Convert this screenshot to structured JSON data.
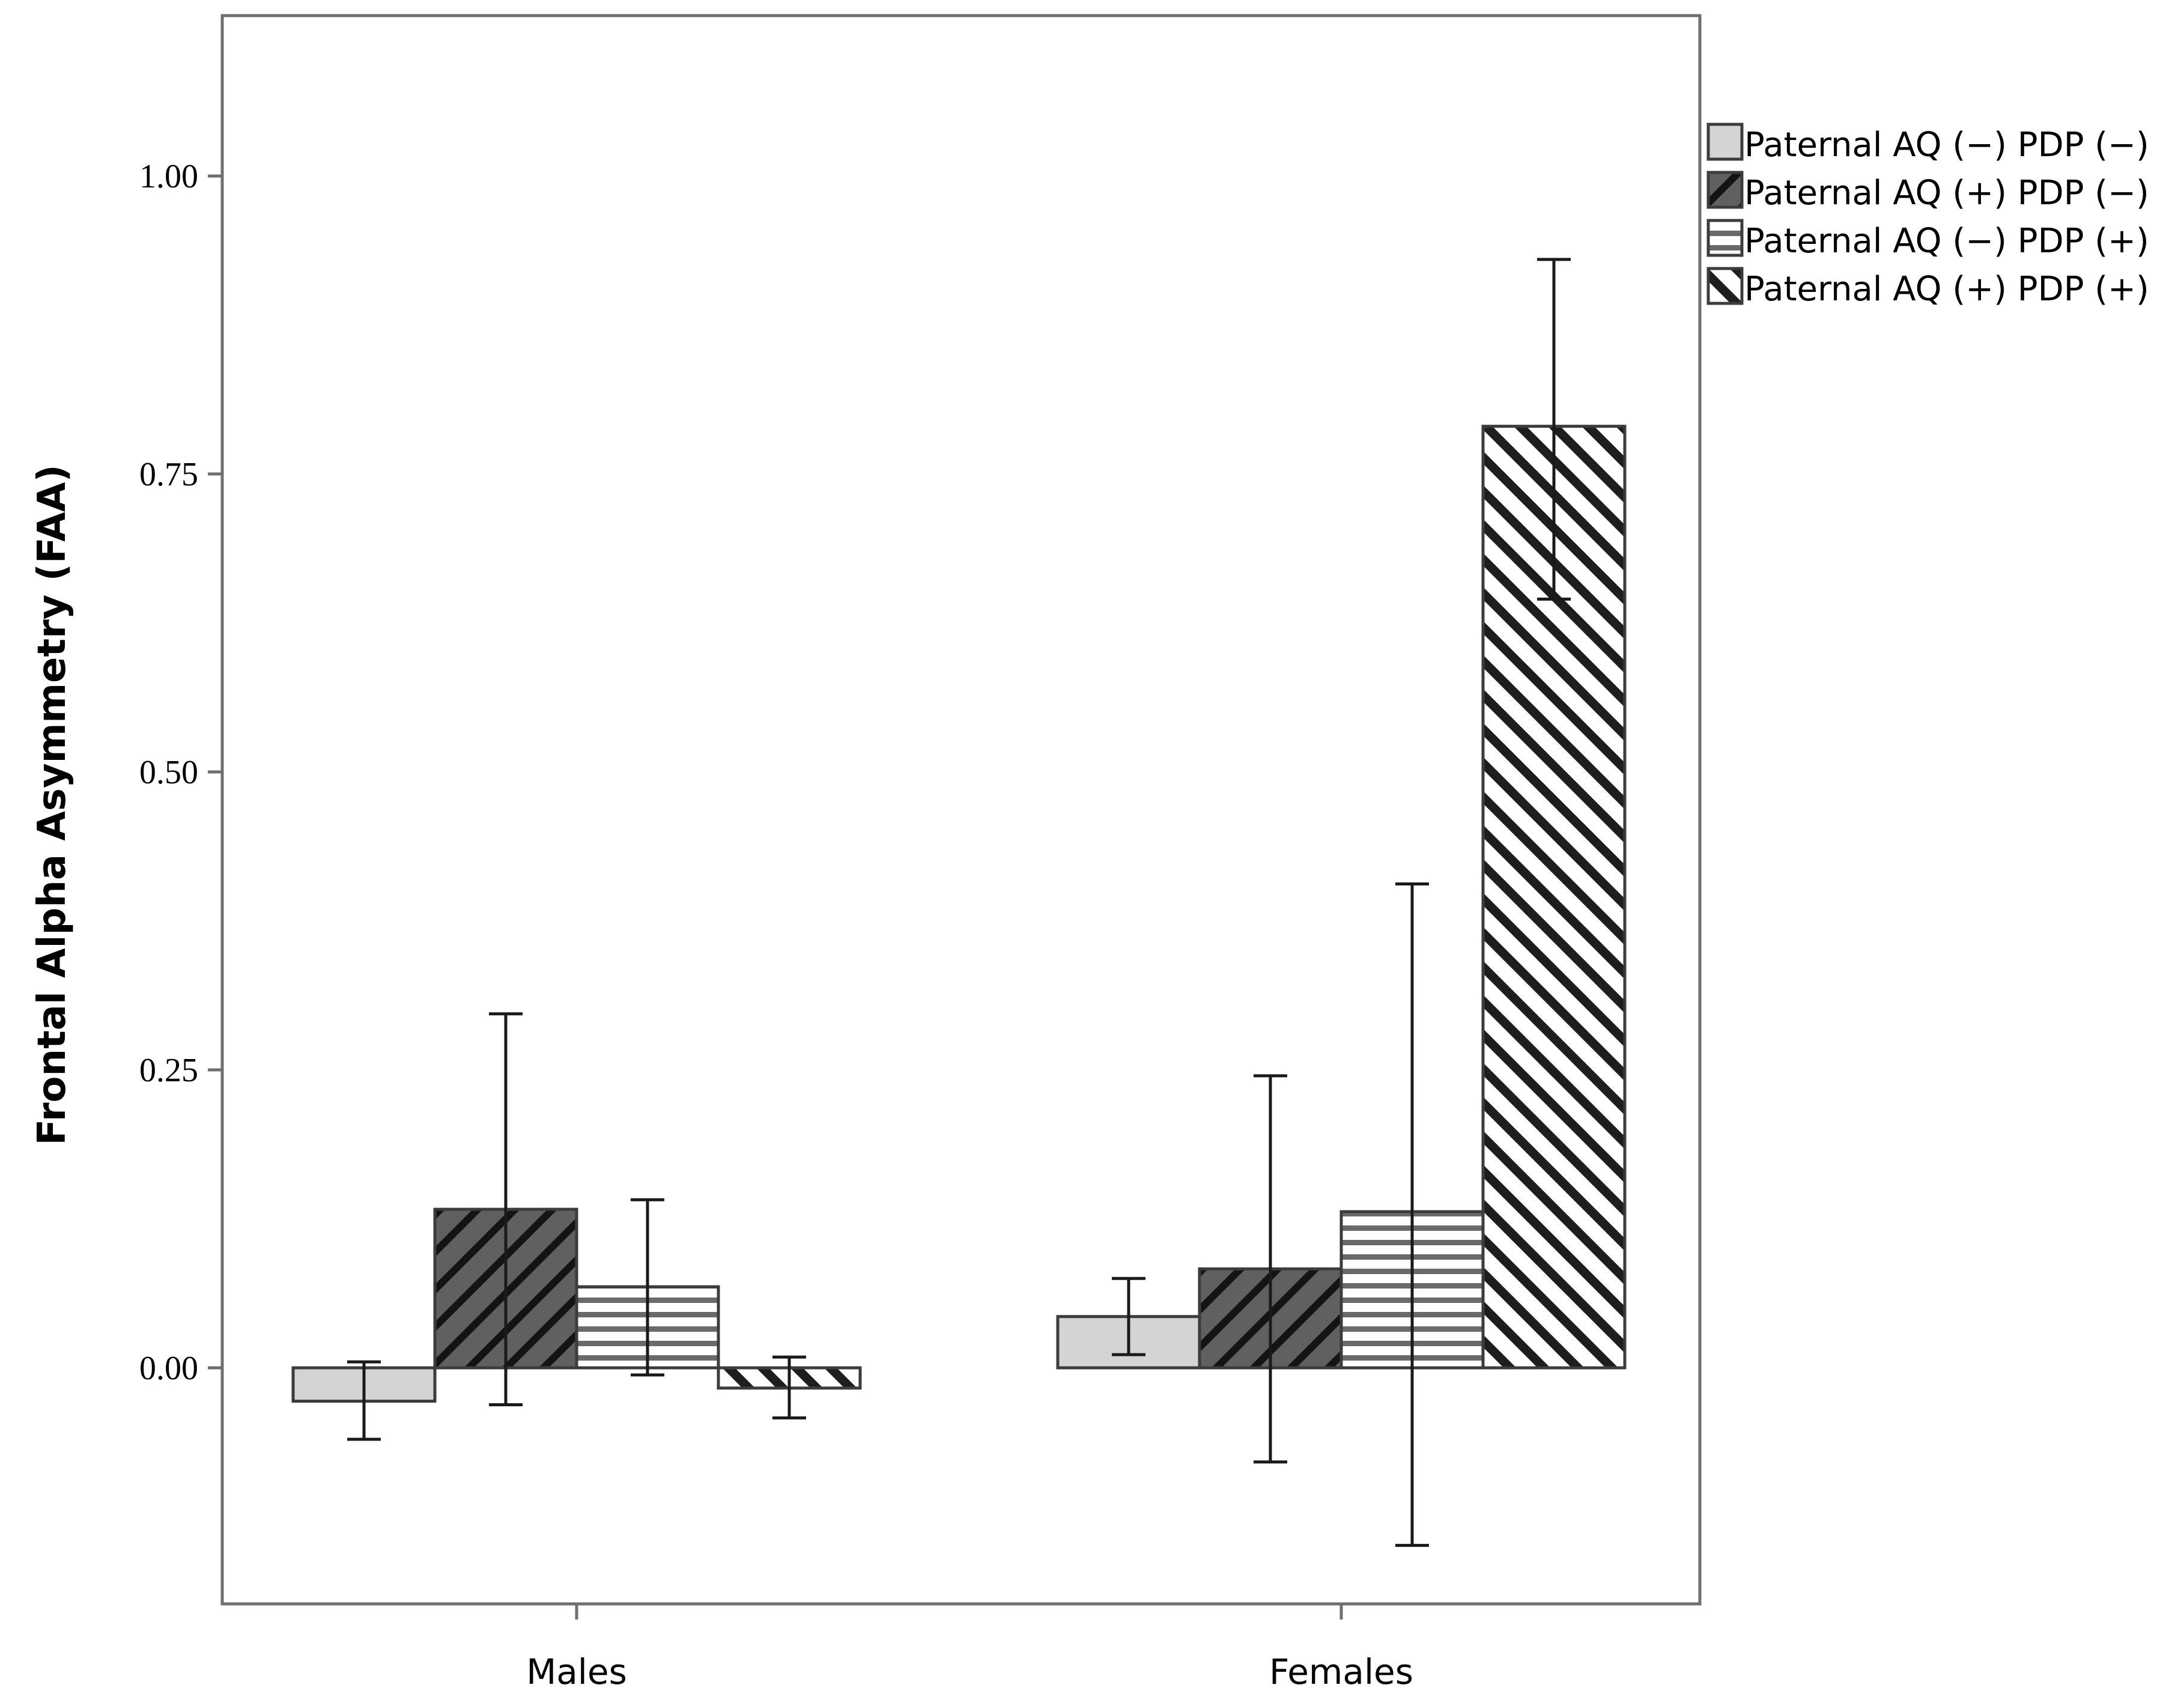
{
  "chart_data": {
    "type": "bar",
    "title": "",
    "xlabel": "",
    "ylabel": "Frontal Alpha Asymmetry (FAA)",
    "categories": [
      "Males",
      "Females"
    ],
    "ylim": [
      -0.2,
      1.13
    ],
    "yticks": [
      "1.00",
      "0.75",
      "0.50",
      "0.25",
      "0.00"
    ],
    "ytick_values": [
      1.0,
      0.75,
      0.5,
      0.25,
      0.0
    ],
    "legend_position": "right",
    "series": [
      {
        "name": "Paternal AQ (−) PDP (−)",
        "pattern": "solid-light",
        "fill": "#d4d4d4",
        "values": [
          -0.028,
          0.043
        ],
        "err_low": [
          -0.06,
          0.011
        ],
        "err_high": [
          0.005,
          0.075
        ]
      },
      {
        "name": "Paternal AQ (+) PDP (−)",
        "pattern": "backslash-dark",
        "fill": "#606060",
        "values": [
          0.133,
          0.083
        ],
        "err_low": [
          -0.031,
          -0.079
        ],
        "err_high": [
          0.297,
          0.245
        ]
      },
      {
        "name": "Paternal AQ (−) PDP (+)",
        "pattern": "horizontal",
        "fill": "#ffffff",
        "values": [
          0.068,
          0.131
        ],
        "err_low": [
          -0.006,
          -0.149
        ],
        "err_high": [
          0.141,
          0.406
        ]
      },
      {
        "name": "Paternal AQ (+) PDP (+)",
        "pattern": "slash",
        "fill": "#ffffff",
        "values": [
          -0.017,
          0.79
        ],
        "err_low": [
          -0.042,
          0.645
        ],
        "err_high": [
          0.009,
          0.93
        ]
      }
    ]
  }
}
